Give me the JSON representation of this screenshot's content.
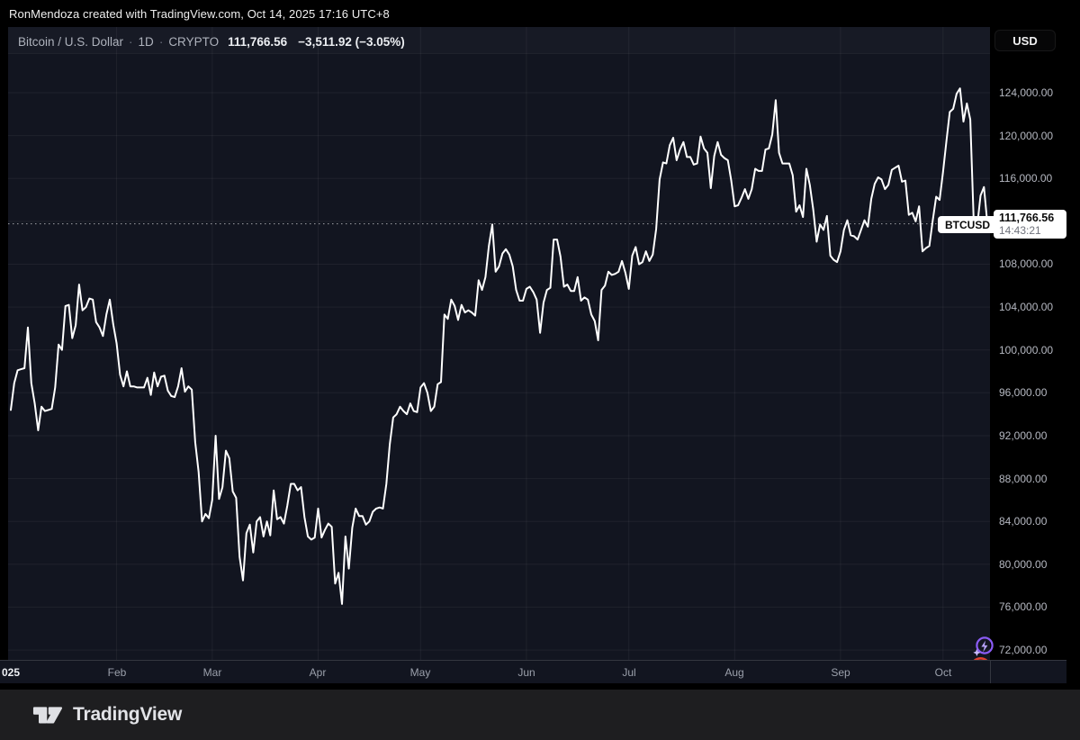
{
  "attribution": "RonMendoza created with TradingView.com, Oct 14, 2025 17:16 UTC+8",
  "header": {
    "symbol_title": "Bitcoin / U.S. Dollar",
    "separator": "·",
    "interval": "1D",
    "market": "CRYPTO",
    "last_price": "111,766.56",
    "change": "−3,511.92 (−3.05%)",
    "currency_button": "USD"
  },
  "price_label": {
    "symbol": "BTCUSD",
    "price": "111,766.56",
    "countdown": "14:43:21"
  },
  "footer": {
    "brand": "TradingView"
  },
  "chart_data": {
    "type": "line",
    "title": "Bitcoin / U.S. Dollar",
    "symbol": "BTCUSD",
    "interval": "1D",
    "line_color": "#ffffff",
    "background_color": "#121520",
    "x_range": "Jan 1, 2025 – Oct 14, 2025 (daily)",
    "ylim": [
      72000,
      124000
    ],
    "y_tick_step": 4000,
    "last_value": 111766.56,
    "grid": true,
    "y_ticks": [
      {
        "value": 124000,
        "label": "124,000.00"
      },
      {
        "value": 120000,
        "label": "120,000.00"
      },
      {
        "value": 116000,
        "label": "116,000.00"
      },
      {
        "value": 112000,
        "label": ""
      },
      {
        "value": 108000,
        "label": "108,000.00"
      },
      {
        "value": 104000,
        "label": "104,000.00"
      },
      {
        "value": 100000,
        "label": "100,000.00"
      },
      {
        "value": 96000,
        "label": "96,000.00"
      },
      {
        "value": 92000,
        "label": "92,000.00"
      },
      {
        "value": 88000,
        "label": "88,000.00"
      },
      {
        "value": 84000,
        "label": "84,000.00"
      },
      {
        "value": 80000,
        "label": "80,000.00"
      },
      {
        "value": 76000,
        "label": "76,000.00"
      },
      {
        "value": 72000,
        "label": "72,000.00"
      }
    ],
    "x_ticks": [
      {
        "text": "025",
        "day": 0,
        "year": true
      },
      {
        "text": "Feb",
        "day": 31
      },
      {
        "text": "Mar",
        "day": 59
      },
      {
        "text": "Apr",
        "day": 90
      },
      {
        "text": "May",
        "day": 120
      },
      {
        "text": "Jun",
        "day": 151
      },
      {
        "text": "Jul",
        "day": 181
      },
      {
        "text": "Aug",
        "day": 212
      },
      {
        "text": "Sep",
        "day": 243
      },
      {
        "text": "Oct",
        "day": 273
      }
    ],
    "series_unit": "USD thousands, daily close",
    "values_k": [
      94.4,
      96.9,
      98.1,
      98.2,
      98.3,
      102.1,
      96.9,
      95.0,
      92.5,
      94.7,
      94.3,
      94.4,
      94.5,
      96.5,
      100.5,
      100.0,
      104.1,
      104.2,
      101.1,
      102.3,
      106.1,
      103.7,
      104.0,
      104.8,
      104.7,
      102.6,
      102.1,
      101.3,
      103.3,
      104.7,
      102.4,
      100.6,
      97.7,
      96.6,
      98.0,
      96.6,
      96.6,
      96.5,
      96.5,
      96.5,
      97.4,
      95.8,
      97.9,
      96.6,
      97.5,
      97.6,
      96.2,
      95.7,
      95.6,
      96.6,
      98.3,
      96.1,
      96.6,
      96.3,
      91.4,
      88.6,
      84.0,
      84.7,
      84.3,
      86.0,
      92.0,
      86.1,
      87.2,
      90.6,
      89.9,
      86.8,
      86.2,
      80.7,
      78.5,
      82.9,
      83.7,
      81.1,
      84.0,
      84.4,
      82.6,
      84.0,
      82.7,
      86.9,
      84.2,
      84.4,
      83.8,
      85.5,
      87.5,
      87.5,
      86.9,
      87.2,
      84.4,
      82.6,
      82.3,
      82.5,
      85.2,
      82.5,
      83.2,
      83.8,
      83.5,
      78.2,
      79.2,
      76.3,
      82.6,
      79.6,
      83.4,
      85.2,
      84.5,
      84.5,
      83.7,
      84.0,
      84.9,
      85.2,
      85.3,
      85.2,
      87.5,
      91.2,
      93.7,
      94.0,
      94.7,
      94.3,
      94.0,
      95.0,
      94.3,
      94.2,
      96.5,
      96.9,
      96.0,
      94.3,
      94.7,
      96.8,
      97.0,
      103.3,
      102.9,
      104.7,
      104.1,
      102.8,
      104.2,
      103.5,
      103.7,
      103.5,
      103.2,
      106.5,
      105.6,
      106.8,
      109.7,
      111.7,
      107.3,
      107.8,
      109.0,
      109.4,
      108.9,
      107.8,
      105.6,
      104.6,
      104.6,
      105.7,
      105.9,
      105.4,
      104.7,
      101.6,
      104.4,
      105.6,
      105.8,
      110.3,
      110.3,
      108.7,
      105.9,
      106.1,
      105.5,
      105.5,
      106.8,
      104.6,
      104.9,
      104.7,
      103.3,
      102.7,
      100.9,
      105.6,
      106.0,
      107.3,
      107.0,
      107.1,
      107.3,
      108.3,
      107.2,
      105.7,
      108.8,
      109.6,
      108.0,
      108.2,
      109.2,
      108.3,
      108.9,
      111.3,
      115.9,
      117.5,
      117.4,
      119.1,
      119.8,
      117.7,
      118.7,
      119.4,
      118.0,
      118.0,
      117.3,
      117.4,
      119.9,
      118.8,
      118.4,
      115.1,
      118.1,
      119.4,
      118.2,
      117.9,
      117.7,
      115.8,
      113.4,
      113.5,
      114.2,
      115.0,
      114.1,
      115.0,
      116.9,
      116.7,
      116.7,
      118.7,
      118.8,
      120.1,
      123.3,
      118.4,
      117.4,
      117.4,
      117.4,
      116.3,
      112.9,
      113.5,
      112.4,
      116.9,
      115.4,
      113.1,
      110.1,
      111.7,
      111.2,
      112.5,
      108.8,
      108.4,
      108.2,
      109.2,
      111.2,
      112.1,
      110.7,
      110.6,
      110.3,
      111.2,
      112.1,
      111.5,
      114.1,
      115.5,
      116.1,
      115.9,
      115.0,
      115.4,
      116.8,
      117.0,
      117.2,
      115.7,
      115.8,
      112.6,
      112.8,
      112.0,
      113.4,
      109.2,
      109.5,
      109.7,
      112.1,
      114.3,
      114.0,
      116.6,
      119.5,
      122.2,
      122.5,
      123.9,
      124.4,
      121.3,
      123.0,
      121.5,
      112.0,
      111.5,
      114.4,
      115.2,
      111.766
    ]
  }
}
